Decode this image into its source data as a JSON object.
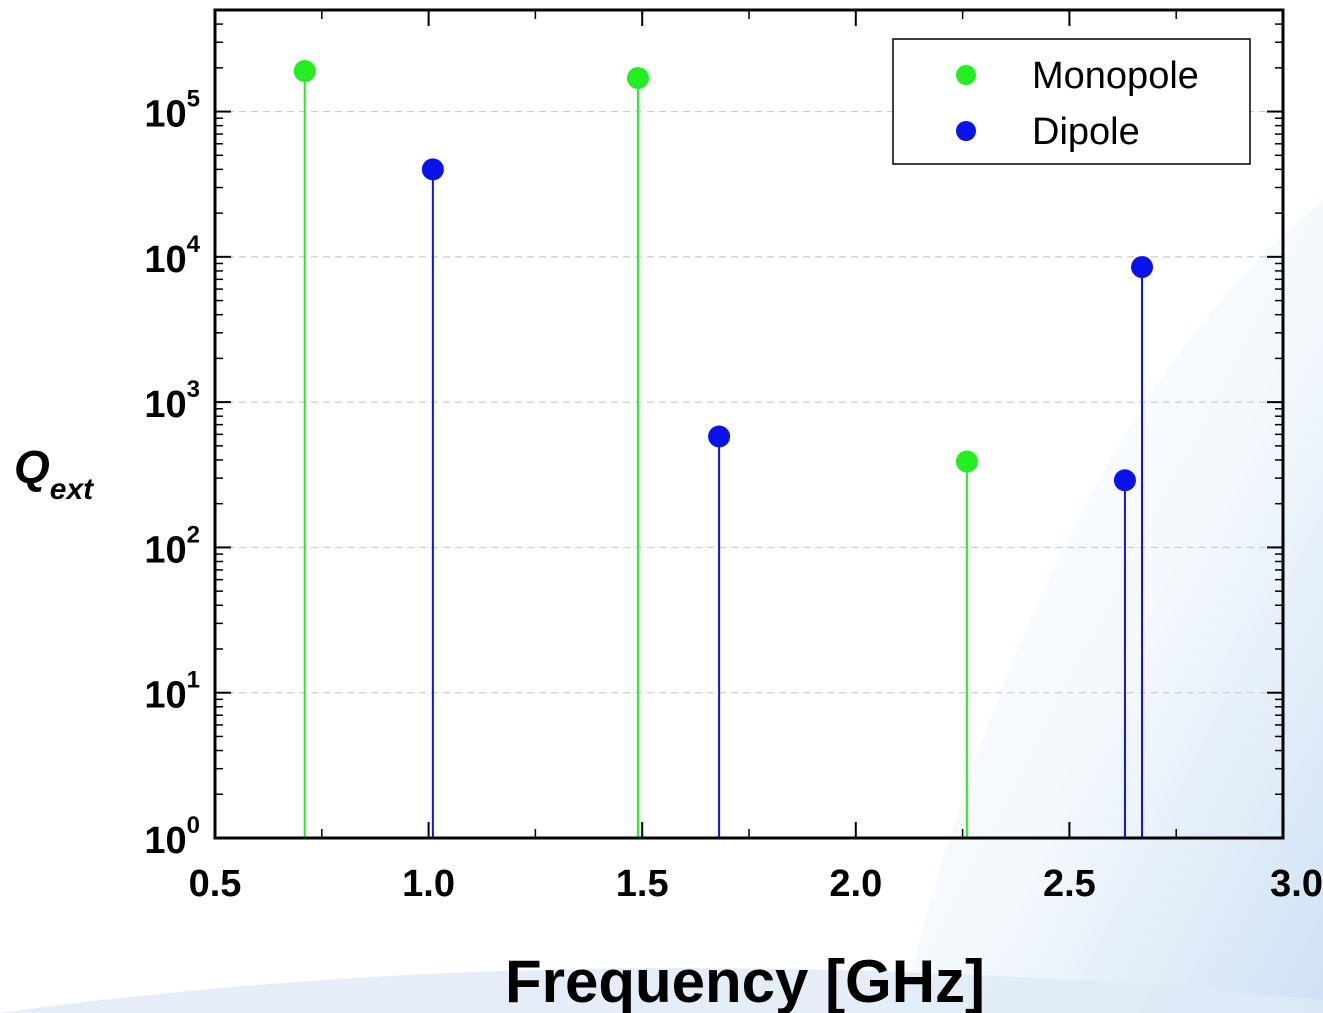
{
  "chart_data": {
    "type": "scatter",
    "xlabel": "Frequency [GHz]",
    "ylabel": "Q",
    "ylabel_subscript": "ext",
    "xlim": [
      0.5,
      3.0
    ],
    "ylim": [
      1,
      500000
    ],
    "yscale": "log",
    "x_ticks": [
      "0.5",
      "1.0",
      "1.5",
      "2.0",
      "2.5",
      "3.0"
    ],
    "y_ticks": [
      {
        "base": "10",
        "exp": "0"
      },
      {
        "base": "10",
        "exp": "1"
      },
      {
        "base": "10",
        "exp": "2"
      },
      {
        "base": "10",
        "exp": "3"
      },
      {
        "base": "10",
        "exp": "4"
      },
      {
        "base": "10",
        "exp": "5"
      }
    ],
    "grid": "horizontal-dashed",
    "legend_position": "top-right",
    "series": [
      {
        "name": "Monopole",
        "color": "#22ee22",
        "x": [
          0.71,
          1.49,
          2.26
        ],
        "y": [
          190000,
          170000,
          390
        ]
      },
      {
        "name": "Dipole",
        "color": "#0a12ee",
        "x": [
          1.01,
          1.68,
          2.63,
          2.67
        ],
        "y": [
          40000,
          580,
          290,
          8500
        ]
      }
    ]
  }
}
